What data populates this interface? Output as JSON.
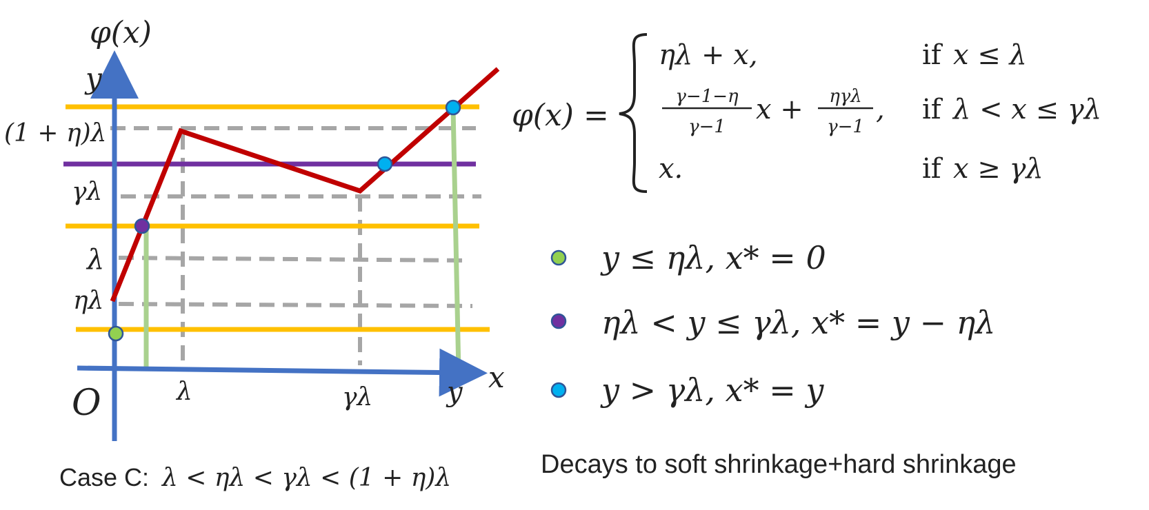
{
  "axes": {
    "phi_label": "φ(x)",
    "y_label": "y",
    "x_label": "x",
    "origin": "O"
  },
  "y_ticks": [
    "(1 + η)λ",
    "γλ",
    "λ",
    "ηλ"
  ],
  "x_ticks": [
    "λ",
    "γλ",
    "y"
  ],
  "formula": {
    "lhs": "φ(x) =",
    "cases": [
      {
        "expr": "ηλ + x,",
        "cond_if": "if",
        "cond": "x ≤ λ"
      },
      {
        "frac1_num": "γ−1−η",
        "frac1_den": "γ−1",
        "mid": "x +",
        "frac2_num": "ηγλ",
        "frac2_den": "γ−1",
        "tail": ",",
        "cond_if": "if",
        "cond": "λ < x ≤ γλ"
      },
      {
        "expr": "x.",
        "cond_if": "if",
        "cond": "x ≥ γλ"
      }
    ]
  },
  "legend": [
    {
      "color": "#92d050",
      "text": "y ≤ ηλ, x* = 0"
    },
    {
      "color": "#7030a0",
      "text": "ηλ < y ≤ γλ, x* = y − ηλ"
    },
    {
      "color": "#00b0f0",
      "text": "y > γλ, x* = y"
    }
  ],
  "caption": {
    "prefix": "Case C:",
    "math": "λ < ηλ < γλ < (1 + η)λ"
  },
  "note": "Decays to soft shrinkage+hard shrinkage",
  "colors": {
    "axis": "#4472c4",
    "phi_curve": "#c00000",
    "level_gold": "#ffc000",
    "level_purple": "#7030a0",
    "projection_green": "#a9d18e",
    "guide_gray": "#a6a6a6",
    "dot_green": "#92d050",
    "dot_purple": "#7030a0",
    "dot_blue": "#00b0f0"
  }
}
